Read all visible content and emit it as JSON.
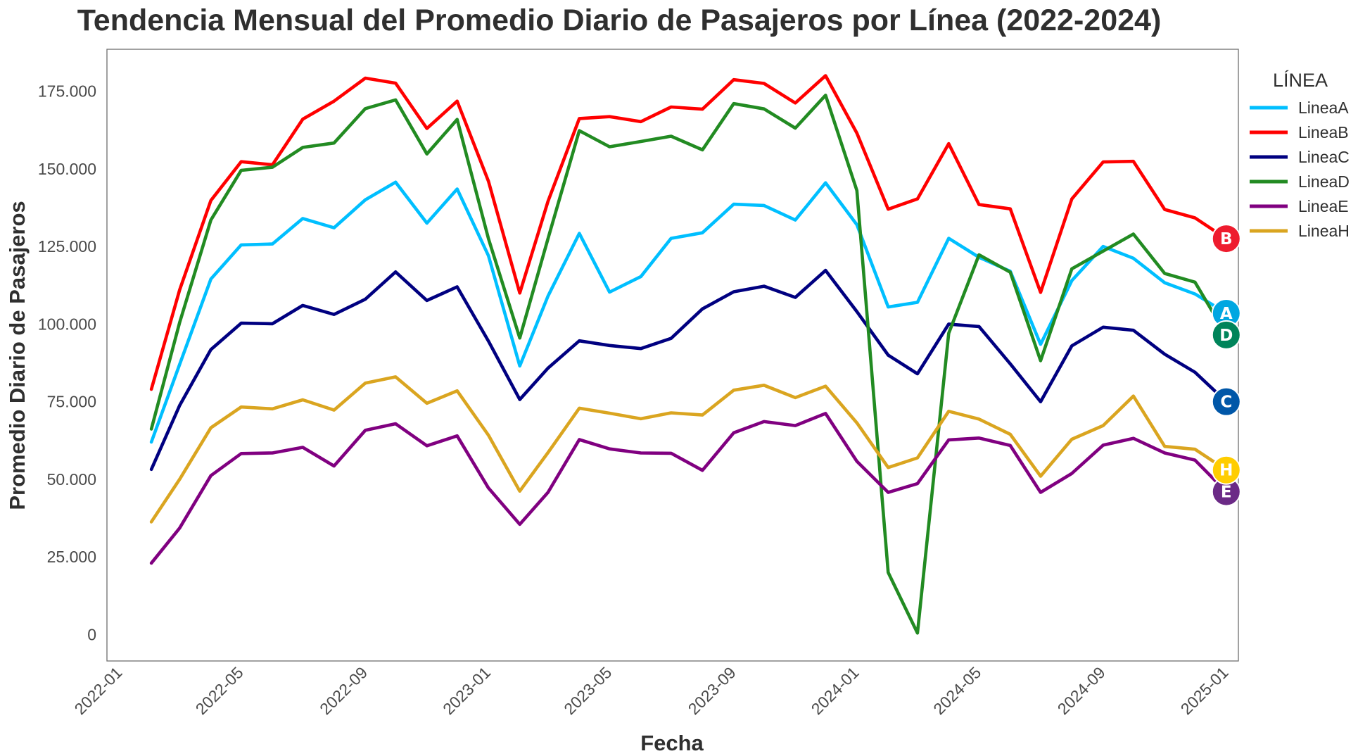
{
  "chart_data": {
    "type": "line",
    "title": "Tendencia Mensual del Promedio Diario de Pasajeros por Línea (2022-2024)",
    "xlabel": "Fecha",
    "ylabel": "Promedio Diario de Pasajeros",
    "ylim": [
      -8500,
      188500
    ],
    "xlim": [
      "2021-12-18",
      "2025-01-12"
    ],
    "x": [
      "2022-01-31",
      "2022-02-28",
      "2022-03-31",
      "2022-04-30",
      "2022-05-31",
      "2022-06-30",
      "2022-07-31",
      "2022-08-31",
      "2022-09-30",
      "2022-10-31",
      "2022-11-30",
      "2022-12-31",
      "2023-01-31",
      "2023-02-28",
      "2023-03-31",
      "2023-04-30",
      "2023-05-31",
      "2023-06-30",
      "2023-07-31",
      "2023-08-31",
      "2023-09-30",
      "2023-10-31",
      "2023-11-30",
      "2023-12-31",
      "2024-01-31",
      "2024-02-29",
      "2024-03-31",
      "2024-04-30",
      "2024-05-31",
      "2024-06-30",
      "2024-07-31",
      "2024-08-31",
      "2024-09-30",
      "2024-10-31",
      "2024-11-30",
      "2024-12-31"
    ],
    "x_ticks": [
      "2022-01",
      "2022-05",
      "2022-09",
      "2023-01",
      "2023-05",
      "2023-09",
      "2024-01",
      "2024-05",
      "2024-09",
      "2025-01"
    ],
    "y_ticks": [
      0,
      25000,
      50000,
      75000,
      100000,
      125000,
      150000,
      175000
    ],
    "y_tick_labels": [
      "0",
      "25.000",
      "50.000",
      "75.000",
      "100.000",
      "125.000",
      "150.000",
      "175.000"
    ],
    "grid": false,
    "legend": {
      "title": "LÍNEA",
      "placement": "outside-top-right"
    },
    "series": [
      {
        "name": "LineaA",
        "color": "#00bfff",
        "badge": "A",
        "badge_color": "#00a7e1",
        "values": [
          62000,
          87000,
          114500,
          125500,
          125800,
          134000,
          131000,
          140000,
          145700,
          132500,
          143500,
          122000,
          86500,
          109000,
          129200,
          110300,
          115300,
          127600,
          129400,
          138600,
          138200,
          133500,
          145500,
          132000,
          105500,
          107000,
          127600,
          121500,
          117000,
          93500,
          114000,
          125000,
          121200,
          113300,
          109700,
          103500
        ]
      },
      {
        "name": "LineaB",
        "color": "#ff0000",
        "badge": "B",
        "badge_color": "#ee1c2e",
        "values": [
          79000,
          111000,
          139800,
          152300,
          151300,
          166000,
          171800,
          179200,
          177600,
          163000,
          171800,
          146000,
          110000,
          139500,
          166200,
          166800,
          165200,
          169900,
          169200,
          178700,
          177500,
          171200,
          180000,
          161500,
          137000,
          140300,
          158100,
          138500,
          137100,
          110200,
          140300,
          152200,
          152400,
          136900,
          134200,
          127500
        ]
      },
      {
        "name": "LineaC",
        "color": "#000080",
        "badge": "C",
        "badge_color": "#0057a8",
        "values": [
          53200,
          73800,
          91800,
          100300,
          100100,
          106000,
          103100,
          108000,
          116800,
          107600,
          112000,
          94500,
          75700,
          85800,
          94600,
          93100,
          92100,
          95400,
          104900,
          110400,
          112200,
          108600,
          117300,
          104000,
          90000,
          84000,
          100000,
          99200,
          87200,
          75000,
          93000,
          99000,
          98000,
          90300,
          84500,
          75000
        ]
      },
      {
        "name": "LineaD",
        "color": "#228b22",
        "badge": "D",
        "badge_color": "#00845a",
        "values": [
          66200,
          100500,
          133500,
          149500,
          150500,
          156900,
          158300,
          169400,
          172200,
          154800,
          165900,
          127500,
          95500,
          127500,
          162300,
          157100,
          158800,
          160500,
          156100,
          171000,
          169300,
          163100,
          173700,
          143000,
          20000,
          500,
          97000,
          122300,
          116700,
          88200,
          117800,
          123500,
          129000,
          116300,
          113500,
          96500
        ]
      },
      {
        "name": "LineaE",
        "color": "#800080",
        "badge": "E",
        "badge_color": "#6b2a86",
        "values": [
          23000,
          34300,
          51200,
          58300,
          58500,
          60300,
          54300,
          65800,
          67900,
          60800,
          64000,
          47200,
          35500,
          45800,
          62800,
          59800,
          58500,
          58400,
          52900,
          65000,
          68600,
          67300,
          71200,
          55800,
          45800,
          48600,
          62700,
          63300,
          60900,
          45800,
          51900,
          61000,
          63200,
          58500,
          56200,
          46000
        ]
      },
      {
        "name": "LineaH",
        "color": "#daa520",
        "badge": "H",
        "badge_color": "#ffcd00",
        "values": [
          36300,
          50000,
          66600,
          73300,
          72700,
          75600,
          72300,
          81000,
          83000,
          74500,
          78500,
          64200,
          46200,
          58600,
          72900,
          71300,
          69500,
          71400,
          70700,
          78700,
          80300,
          76300,
          80000,
          68200,
          53800,
          56900,
          71900,
          69400,
          64500,
          51000,
          62900,
          67300,
          76800,
          60600,
          59700,
          53000
        ]
      }
    ]
  }
}
